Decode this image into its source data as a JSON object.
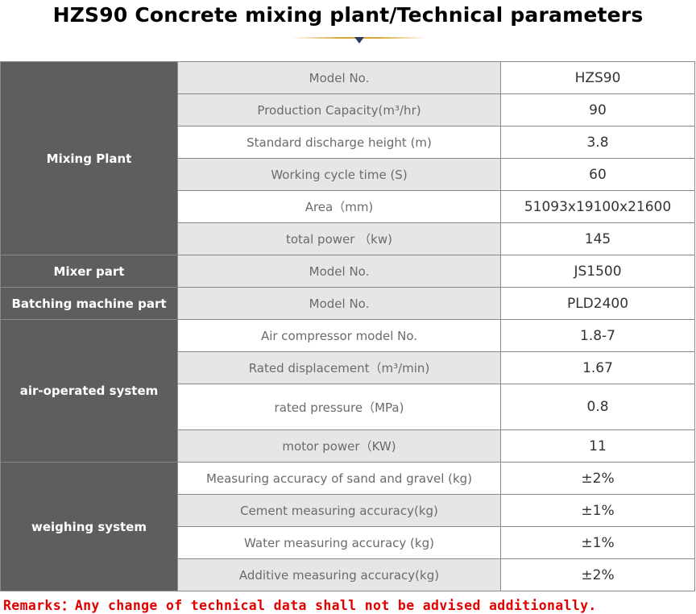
{
  "title": "HZS90 Concrete mixing plant/Technical parameters",
  "sections": [
    {
      "category": "Mixing Plant",
      "rows": [
        {
          "label": "Model No.",
          "value": "HZS90"
        },
        {
          "label": "Production Capacity(m³/hr)",
          "value": "90"
        },
        {
          "label": "Standard discharge height (m)",
          "value": "3.8"
        },
        {
          "label": "Working cycle time (S)",
          "value": "60"
        },
        {
          "label": "Area（mm)",
          "value": "51093x19100x21600"
        },
        {
          "label": "total power （kw)",
          "value": "145"
        }
      ]
    },
    {
      "category": "Mixer part",
      "rows": [
        {
          "label": "Model No.",
          "value": "JS1500"
        }
      ]
    },
    {
      "category": "Batching machine part",
      "rows": [
        {
          "label": "Model No.",
          "value": "PLD2400"
        }
      ]
    },
    {
      "category": "air-operated system",
      "rows": [
        {
          "label": "Air compressor model No.",
          "value": "1.8-7"
        },
        {
          "label": "Rated displacement（m³/min)",
          "value": "1.67"
        },
        {
          "label": "rated pressure（MPa)",
          "value": "0.8"
        },
        {
          "label": "motor power（KW)",
          "value": "11"
        }
      ]
    },
    {
      "category": "weighing system",
      "rows": [
        {
          "label": "Measuring accuracy of sand and gravel (kg)",
          "value": "±2%"
        },
        {
          "label": "Cement measuring accuracy(kg)",
          "value": "±1%"
        },
        {
          "label": "Water measuring accuracy (kg)",
          "value": "±1%"
        },
        {
          "label": "Additive measuring accuracy(kg)",
          "value": "±2%"
        }
      ]
    }
  ],
  "remarks": "Remarks：Any change of technical data shall not be advised additionally.",
  "colors": {
    "category_bg": "#5e5e5e",
    "shaded_row_bg": "#e6e6e6",
    "remarks_text": "#e00000",
    "decoration_gold": "#d8a93a",
    "decoration_arrow": "#2b3a67"
  }
}
